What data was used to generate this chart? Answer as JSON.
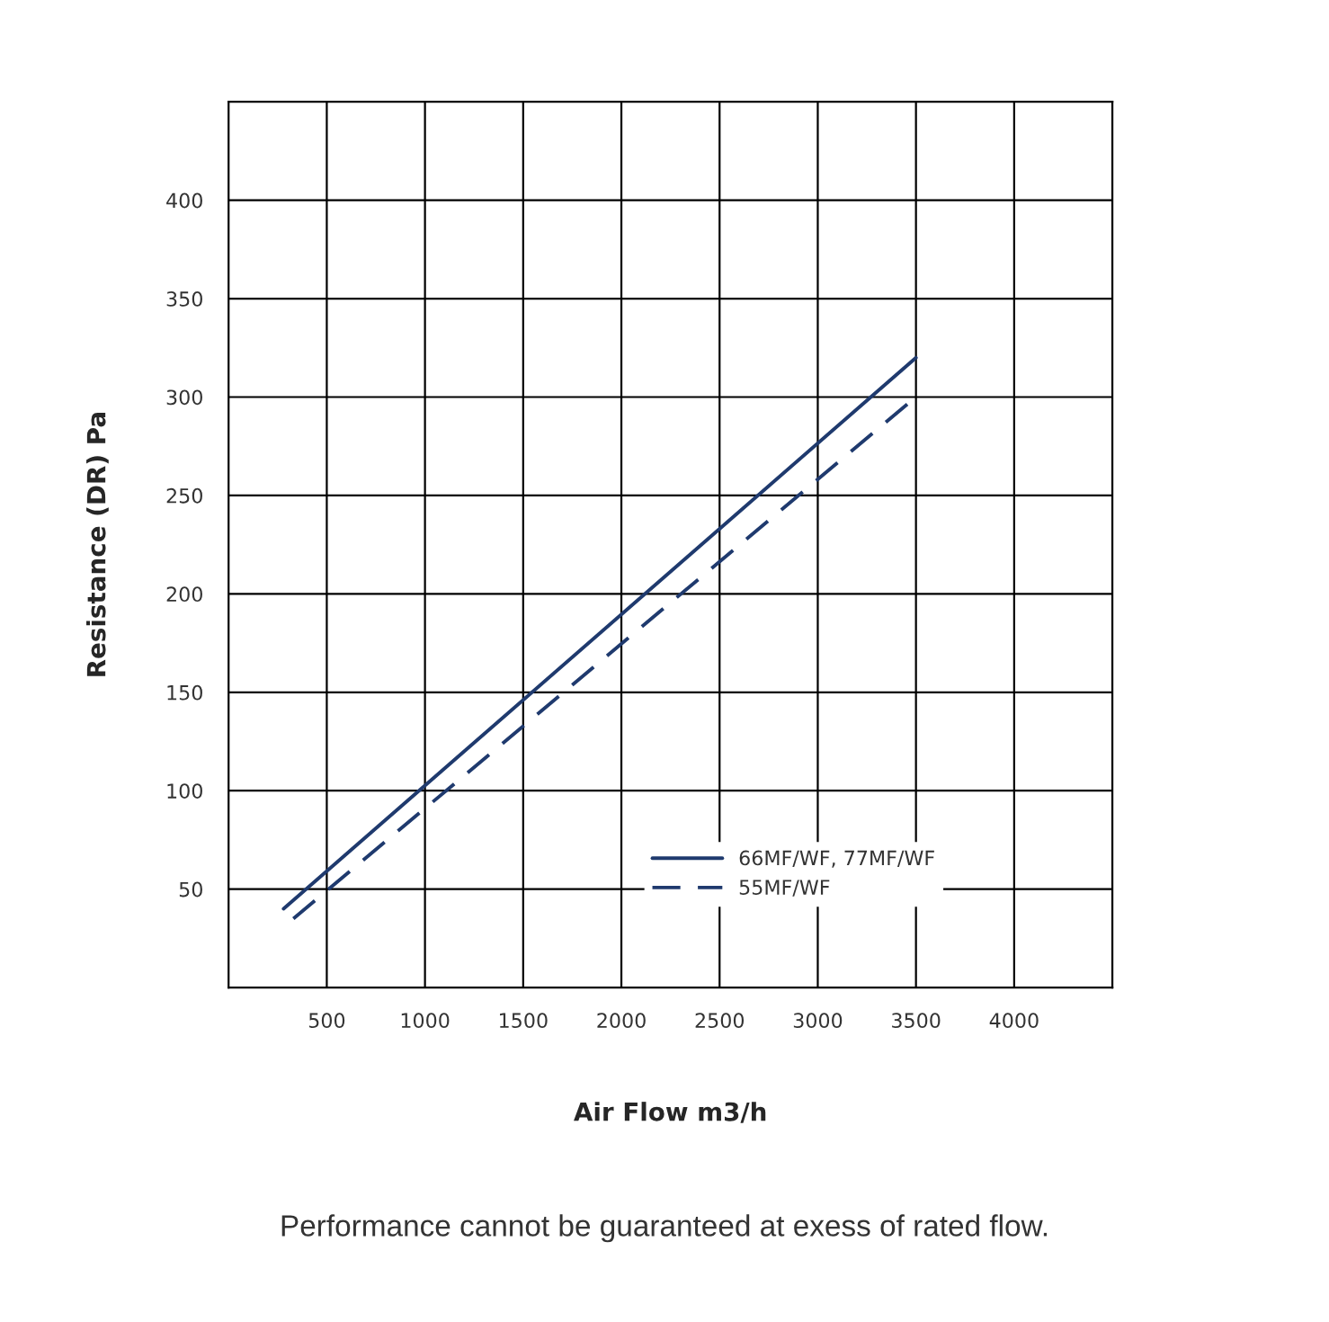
{
  "chart_data": {
    "type": "line",
    "xlabel": "Air Flow m3/h",
    "ylabel": "Resistance (DR) Pa",
    "xlim": [
      0,
      4500
    ],
    "xticks": [
      500,
      1000,
      1500,
      2000,
      2500,
      3000,
      3500,
      4000
    ],
    "ylim": [
      0,
      450
    ],
    "yticks": [
      50,
      100,
      150,
      200,
      250,
      300,
      350,
      400
    ],
    "grid": true,
    "legend": "bottom right",
    "series": [
      {
        "name": "66MF/WF, 77MF/WF",
        "color": "#1f3a6e",
        "x": [
          280,
          3500
        ],
        "values": [
          40,
          320
        ],
        "line_style": "solid"
      },
      {
        "name": "55MF/WF",
        "color": "#1f3a6e",
        "x": [
          330,
          3500
        ],
        "values": [
          35,
          300
        ],
        "line_style": "dashed"
      }
    ],
    "annotations": [
      "Performance cannot be guaranteed at exess of rated flow."
    ]
  }
}
